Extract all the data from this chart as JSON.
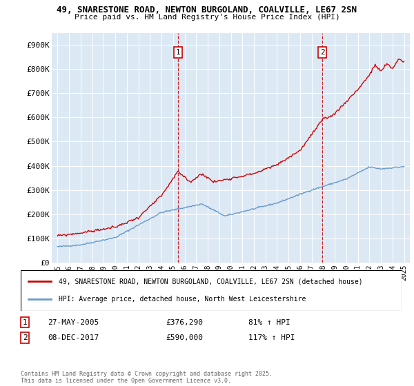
{
  "title_line1": "49, SNARESTONE ROAD, NEWTON BURGOLAND, COALVILLE, LE67 2SN",
  "title_line2": "Price paid vs. HM Land Registry's House Price Index (HPI)",
  "bg_color": "#dce9f5",
  "red_color": "#cc0000",
  "blue_color": "#6699cc",
  "annotation1": {
    "label": "1",
    "date": "27-MAY-2005",
    "price": "£376,290",
    "hpi_pct": "81% ↑ HPI",
    "x_year": 2005.42
  },
  "annotation2": {
    "label": "2",
    "date": "08-DEC-2017",
    "price": "£590,000",
    "hpi_pct": "117% ↑ HPI",
    "x_year": 2017.93
  },
  "legend_line1": "49, SNARESTONE ROAD, NEWTON BURGOLAND, COALVILLE, LE67 2SN (detached house)",
  "legend_line2": "HPI: Average price, detached house, North West Leicestershire",
  "footer": "Contains HM Land Registry data © Crown copyright and database right 2025.\nThis data is licensed under the Open Government Licence v3.0.",
  "ylim": [
    0,
    950000
  ],
  "yticks": [
    0,
    100000,
    200000,
    300000,
    400000,
    500000,
    600000,
    700000,
    800000,
    900000
  ],
  "ytick_labels": [
    "£0",
    "£100K",
    "£200K",
    "£300K",
    "£400K",
    "£500K",
    "£600K",
    "£700K",
    "£800K",
    "£900K"
  ],
  "xlim_start": 1994.5,
  "xlim_end": 2025.5,
  "xticks": [
    1995,
    1996,
    1997,
    1998,
    1999,
    2000,
    2001,
    2002,
    2003,
    2004,
    2005,
    2006,
    2007,
    2008,
    2009,
    2010,
    2011,
    2012,
    2013,
    2014,
    2015,
    2016,
    2017,
    2018,
    2019,
    2020,
    2021,
    2022,
    2023,
    2024,
    2025
  ]
}
